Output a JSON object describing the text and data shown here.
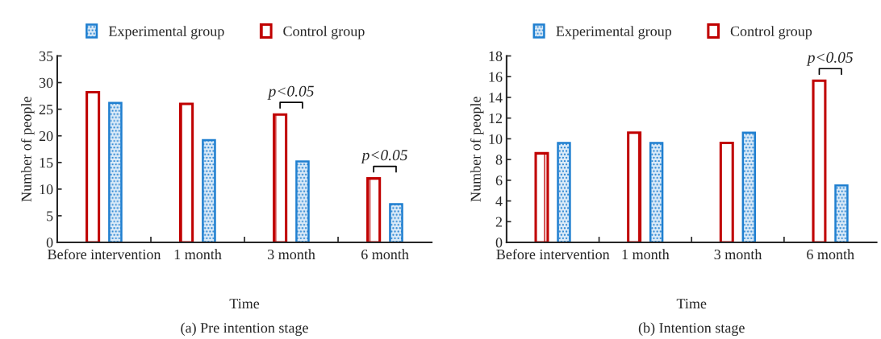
{
  "chart_data": [
    {
      "type": "bar",
      "xlabel": "Time",
      "ylabel": "Number of people",
      "legend": "top",
      "grid": false,
      "categories": [
        "Before intervention",
        "1 month",
        "3 month",
        "6 month"
      ],
      "series": [
        {
          "name": "Experimental group",
          "color": "#1f7fd0",
          "values": [
            26.2,
            19.2,
            15.2,
            7.2
          ]
        },
        {
          "name": "Control group",
          "color": "#c00000",
          "values": [
            28.2,
            26.0,
            24.0,
            12.0
          ]
        }
      ],
      "ylim": [
        0,
        35
      ],
      "yticks": [
        0,
        5,
        10,
        15,
        20,
        25,
        30,
        35
      ],
      "annotations": [
        "p<0.05",
        "p<0.05",
        "(a) Pre intention stage"
      ]
    },
    {
      "type": "bar",
      "xlabel": "Time",
      "ylabel": "Number of people",
      "legend": "top",
      "grid": false,
      "categories": [
        "Before intervention",
        "1 month",
        "3 month",
        "6 month"
      ],
      "series": [
        {
          "name": "Experimental group",
          "color": "#1f7fd0",
          "values": [
            9.6,
            9.6,
            10.6,
            5.5
          ]
        },
        {
          "name": "Control group",
          "color": "#c00000",
          "values": [
            8.6,
            10.6,
            9.6,
            15.6
          ]
        }
      ],
      "ylim": [
        0,
        18
      ],
      "yticks": [
        0,
        2,
        4,
        6,
        8,
        10,
        12,
        14,
        16,
        18
      ],
      "annotations": [
        "p<0.05",
        "(b) Intention stage"
      ]
    }
  ]
}
